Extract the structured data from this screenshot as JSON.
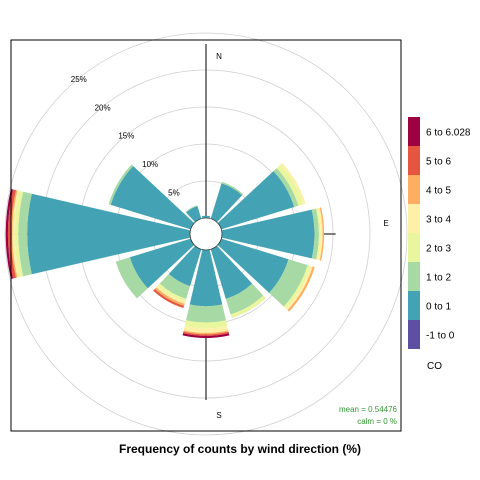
{
  "chart_data": {
    "type": "windrose",
    "caption": "Frequency of counts by wind direction (%)",
    "radial_ticks": [
      {
        "value": 5,
        "label": "5%"
      },
      {
        "value": 10,
        "label": "10%"
      },
      {
        "value": 15,
        "label": "15%"
      },
      {
        "value": 20,
        "label": "20%"
      },
      {
        "value": 25,
        "label": "25%"
      }
    ],
    "radial_max": 25,
    "directions": [
      {
        "key": "N",
        "label": "N"
      },
      {
        "key": "E",
        "label": "E"
      },
      {
        "key": "S",
        "label": "S"
      }
    ],
    "legend": {
      "title": "CO",
      "bins": [
        {
          "label": "-1 to 0",
          "color": "#5E4FA2"
        },
        {
          "label": "0 to 1",
          "color": "#43A2B3"
        },
        {
          "label": "1 to 2",
          "color": "#A6D9A4"
        },
        {
          "label": "2 to 3",
          "color": "#EAF69E"
        },
        {
          "label": "3 to 4",
          "color": "#FEF0A7"
        },
        {
          "label": "4 to 5",
          "color": "#FDAE61"
        },
        {
          "label": "5 to 6",
          "color": "#E6553F"
        },
        {
          "label": "6 to 6.028",
          "color": "#9E0142"
        }
      ]
    },
    "sectors": [
      {
        "dir": 0,
        "values": [
          0,
          0.3,
          0,
          0,
          0,
          0,
          0,
          0
        ]
      },
      {
        "dir": 30,
        "values": [
          0,
          5.0,
          0.2,
          0,
          0,
          0,
          0,
          0
        ]
      },
      {
        "dir": 60,
        "values": [
          0,
          10.3,
          0.6,
          0.7,
          0.3,
          0,
          0,
          0
        ]
      },
      {
        "dir": 90,
        "values": [
          0,
          12.5,
          0.6,
          0.2,
          0.3,
          0.2,
          0,
          0
        ]
      },
      {
        "dir": 120,
        "values": [
          0,
          9.5,
          2.7,
          0.4,
          0.3,
          0.3,
          0,
          0
        ]
      },
      {
        "dir": 150,
        "values": [
          0,
          7.0,
          2.2,
          0.5,
          0,
          0,
          0,
          0
        ]
      },
      {
        "dir": 180,
        "values": [
          0,
          7.6,
          2.2,
          0.8,
          0.6,
          0.2,
          0.2,
          0.3
        ]
      },
      {
        "dir": 210,
        "values": [
          0,
          5.2,
          1.8,
          0.4,
          0.3,
          0.3,
          0.3,
          0
        ]
      },
      {
        "dir": 240,
        "values": [
          0,
          8.6,
          2.0,
          0,
          0,
          0,
          0,
          0
        ]
      },
      {
        "dir": 270,
        "values": [
          0,
          22.0,
          1.2,
          0.5,
          0.3,
          0.2,
          0.4,
          0.3
        ]
      },
      {
        "dir": 300,
        "values": [
          0,
          11.3,
          0.3,
          0,
          0,
          0,
          0,
          0
        ]
      },
      {
        "dir": 330,
        "values": [
          0,
          1.8,
          0.1,
          0,
          0,
          0,
          0,
          0
        ]
      }
    ],
    "stats": {
      "mean": "mean = 0.54476",
      "calm": "calm = 0 %"
    }
  }
}
